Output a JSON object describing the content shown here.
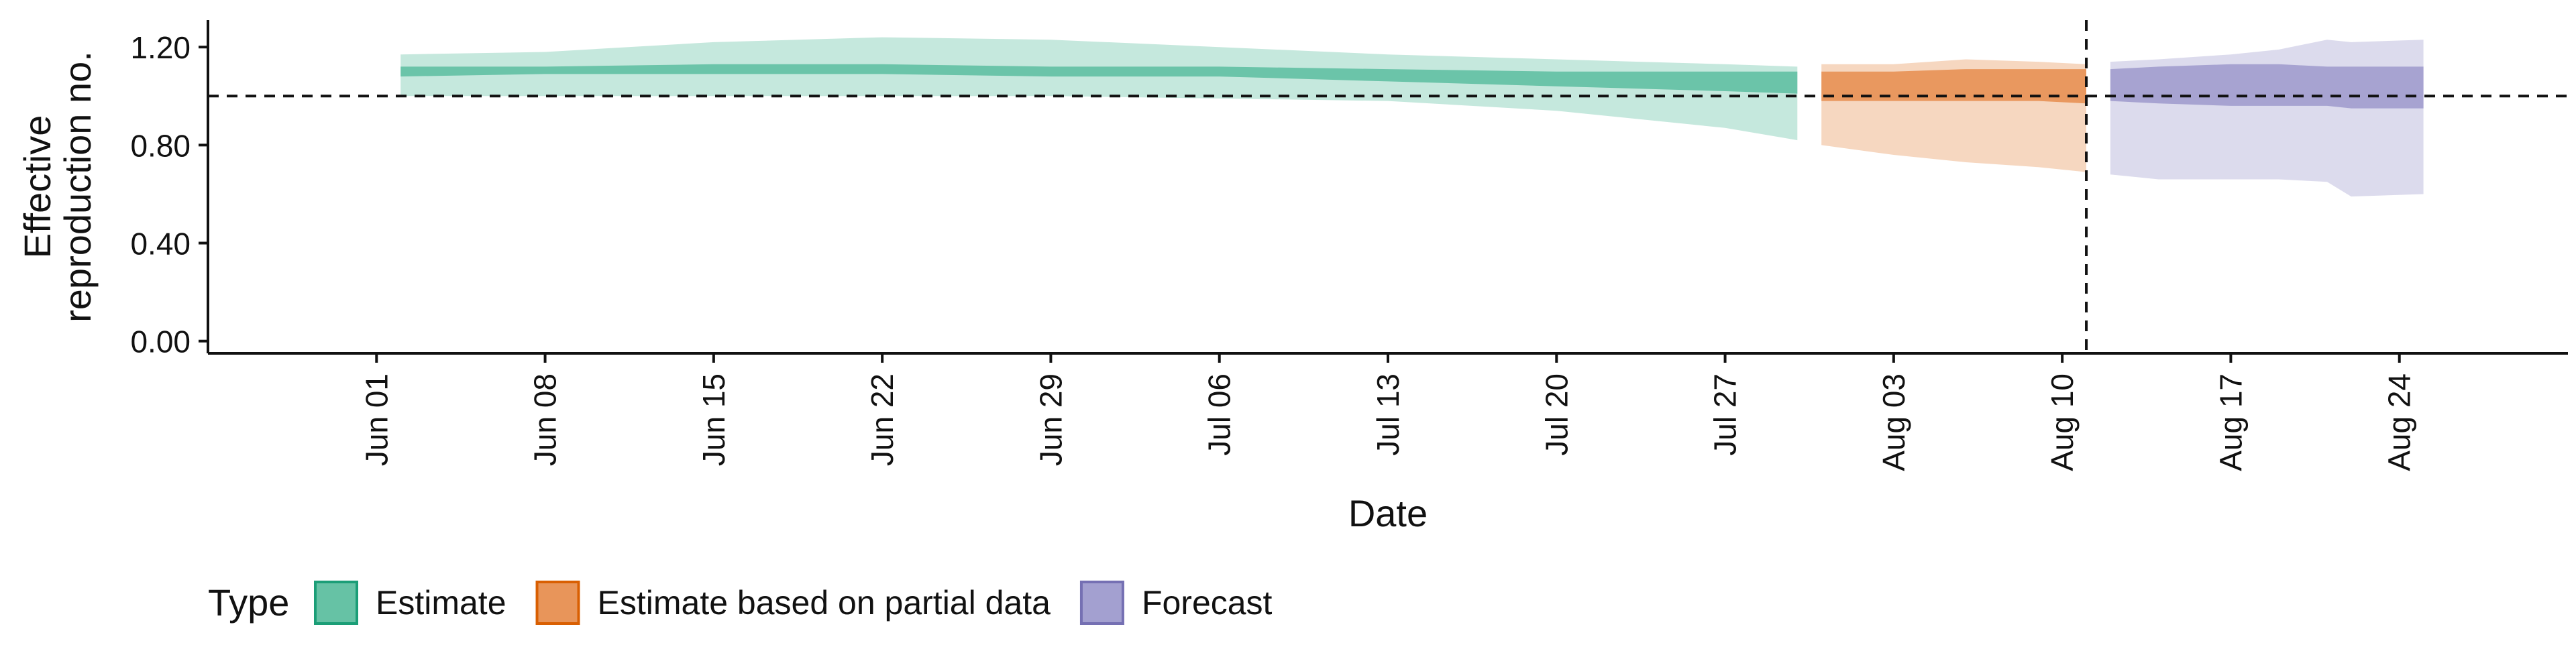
{
  "chart_data": {
    "type": "area",
    "xlabel": "Date",
    "ylabel_lines": [
      "Effective",
      "reproduction no."
    ],
    "x_tick_labels": [
      "Jun 01",
      "Jun 08",
      "Jun 15",
      "Jun 22",
      "Jun 29",
      "Jul 06",
      "Jul 13",
      "Jul 20",
      "Jul 27",
      "Aug 03",
      "Aug 10",
      "Aug 17",
      "Aug 24"
    ],
    "x_tick_dates": [
      "2020-06-01",
      "2020-06-08",
      "2020-06-15",
      "2020-06-22",
      "2020-06-29",
      "2020-07-06",
      "2020-07-13",
      "2020-07-20",
      "2020-07-27",
      "2020-08-03",
      "2020-08-10",
      "2020-08-17",
      "2020-08-24"
    ],
    "xlim": [
      "2020-05-25",
      "2020-08-31"
    ],
    "y_tick_labels": [
      "0.00",
      "0.40",
      "0.80",
      "1.20"
    ],
    "y_ticks": [
      0,
      0.4,
      0.8,
      1.2
    ],
    "ylim": [
      -0.05,
      1.31
    ],
    "hline": 1.0,
    "vline": "2020-08-11",
    "grid": false,
    "legend": {
      "title": "Type",
      "position": "bottom-left",
      "items": [
        {
          "label": "Estimate",
          "fill": "#66c2a5",
          "stroke": "#1b9e77"
        },
        {
          "label": "Estimate based on partial data",
          "fill": "#e8955a",
          "stroke": "#d95f02"
        },
        {
          "label": "Forecast",
          "fill": "#a3a0d0",
          "stroke": "#7570b3"
        }
      ]
    },
    "series": [
      {
        "name": "Estimate",
        "color": "#66c2a5",
        "dates": [
          "2020-06-02",
          "2020-06-08",
          "2020-06-15",
          "2020-06-22",
          "2020-06-29",
          "2020-07-06",
          "2020-07-13",
          "2020-07-20",
          "2020-07-27",
          "2020-07-30"
        ],
        "outer_lower": [
          1.0,
          1.0,
          1.0,
          1.0,
          1.0,
          0.99,
          0.98,
          0.94,
          0.87,
          0.82
        ],
        "outer_upper": [
          1.17,
          1.18,
          1.22,
          1.24,
          1.23,
          1.2,
          1.17,
          1.15,
          1.13,
          1.12
        ],
        "inner_lower": [
          1.08,
          1.09,
          1.09,
          1.09,
          1.08,
          1.08,
          1.06,
          1.04,
          1.02,
          1.01
        ],
        "inner_upper": [
          1.12,
          1.12,
          1.13,
          1.13,
          1.12,
          1.12,
          1.11,
          1.1,
          1.1,
          1.1
        ]
      },
      {
        "name": "Estimate based on partial data",
        "color": "#e8955a",
        "dates": [
          "2020-07-31",
          "2020-08-03",
          "2020-08-06",
          "2020-08-09",
          "2020-08-11"
        ],
        "outer_lower": [
          0.8,
          0.76,
          0.73,
          0.71,
          0.69
        ],
        "outer_upper": [
          1.13,
          1.13,
          1.15,
          1.14,
          1.13
        ],
        "inner_lower": [
          0.98,
          0.98,
          0.98,
          0.98,
          0.97
        ],
        "inner_upper": [
          1.1,
          1.1,
          1.11,
          1.11,
          1.11
        ]
      },
      {
        "name": "Forecast",
        "color": "#a3a0d0",
        "dates": [
          "2020-08-12",
          "2020-08-14",
          "2020-08-17",
          "2020-08-19",
          "2020-08-21",
          "2020-08-22",
          "2020-08-25"
        ],
        "outer_lower": [
          0.68,
          0.66,
          0.66,
          0.66,
          0.65,
          0.59,
          0.6
        ],
        "outer_upper": [
          1.14,
          1.15,
          1.17,
          1.19,
          1.23,
          1.22,
          1.23
        ],
        "inner_lower": [
          0.98,
          0.97,
          0.96,
          0.96,
          0.96,
          0.95,
          0.95
        ],
        "inner_upper": [
          1.11,
          1.12,
          1.13,
          1.13,
          1.12,
          1.12,
          1.12
        ]
      }
    ]
  }
}
